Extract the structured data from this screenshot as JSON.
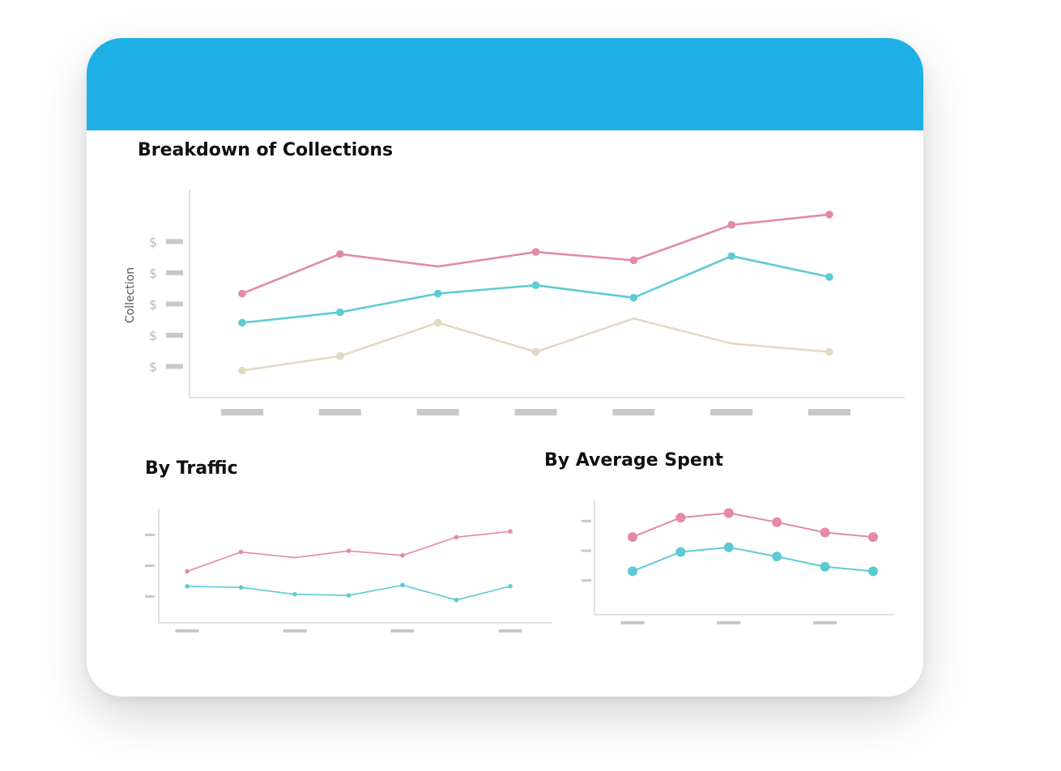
{
  "header": {
    "color": "#1eb0e6"
  },
  "titles": {
    "main": "Breakdown of Collections",
    "traffic": "By Traffic",
    "average": "By Average Spent"
  },
  "colors": {
    "pink": "#e38aa6",
    "teal": "#5ecbd3",
    "beige": "#e4d8c4",
    "placeholder": "#c8c8c8",
    "axis": "#cfcfcf",
    "tick_text": "#b9b9b9"
  },
  "chart_data": [
    {
      "id": "main",
      "type": "line",
      "title": "Breakdown of Collections",
      "ylabel": "Collection",
      "ytick_labels": [
        "$",
        "$",
        "$",
        "$",
        "$"
      ],
      "xtick_labels": [
        "",
        "",
        "",
        "",
        "",
        "",
        ""
      ],
      "x": [
        1,
        2,
        3,
        4,
        5,
        6,
        7
      ],
      "ylim": [
        0,
        10
      ],
      "ytick_values": [
        1.5,
        3.0,
        4.5,
        6.0,
        7.5
      ],
      "series": [
        {
          "color": "#e38aa6",
          "values": [
            5.0,
            6.9,
            6.3,
            7.0,
            6.6,
            8.3,
            8.8
          ],
          "markers": [
            true,
            true,
            false,
            true,
            true,
            true,
            true
          ]
        },
        {
          "color": "#5ecbd3",
          "values": [
            3.6,
            4.1,
            5.0,
            5.4,
            4.8,
            6.8,
            5.8
          ],
          "markers": [
            true,
            true,
            true,
            true,
            true,
            true,
            true
          ]
        },
        {
          "color": "#e4d8c4",
          "values": [
            1.3,
            2.0,
            3.6,
            2.2,
            3.8,
            2.6,
            2.2
          ],
          "markers": [
            true,
            true,
            true,
            true,
            false,
            false,
            true
          ]
        }
      ]
    },
    {
      "id": "traffic",
      "type": "line",
      "title": "By Traffic",
      "x": [
        1,
        2,
        3,
        4,
        5,
        6,
        7
      ],
      "ylim": [
        0,
        10
      ],
      "ytick_values": [
        2.3,
        5.0,
        7.7
      ],
      "xticks_at": [
        1,
        3,
        5,
        7
      ],
      "series": [
        {
          "color": "#e38aa6",
          "values": [
            4.5,
            6.2,
            5.7,
            6.3,
            5.9,
            7.5,
            8.0
          ],
          "markers": [
            true,
            true,
            false,
            true,
            true,
            true,
            true
          ]
        },
        {
          "color": "#5ecbd3",
          "values": [
            3.2,
            3.1,
            2.5,
            2.4,
            3.3,
            2.0,
            3.2
          ],
          "markers": [
            true,
            true,
            true,
            true,
            true,
            true,
            true
          ]
        }
      ]
    },
    {
      "id": "average",
      "type": "line",
      "title": "By Average Spent",
      "x": [
        1,
        2,
        3,
        4,
        5,
        6
      ],
      "ylim": [
        0,
        10
      ],
      "ytick_values": [
        3.0,
        5.6,
        8.2
      ],
      "xticks_at": [
        1,
        3,
        5
      ],
      "series": [
        {
          "color": "#e38aa6",
          "values": [
            6.8,
            8.5,
            8.9,
            8.1,
            7.2,
            6.8
          ],
          "markers": [
            true,
            true,
            true,
            true,
            true,
            true
          ]
        },
        {
          "color": "#5ecbd3",
          "values": [
            3.8,
            5.5,
            5.9,
            5.1,
            4.2,
            3.8
          ],
          "markers": [
            true,
            true,
            true,
            true,
            true,
            true
          ]
        }
      ]
    }
  ]
}
